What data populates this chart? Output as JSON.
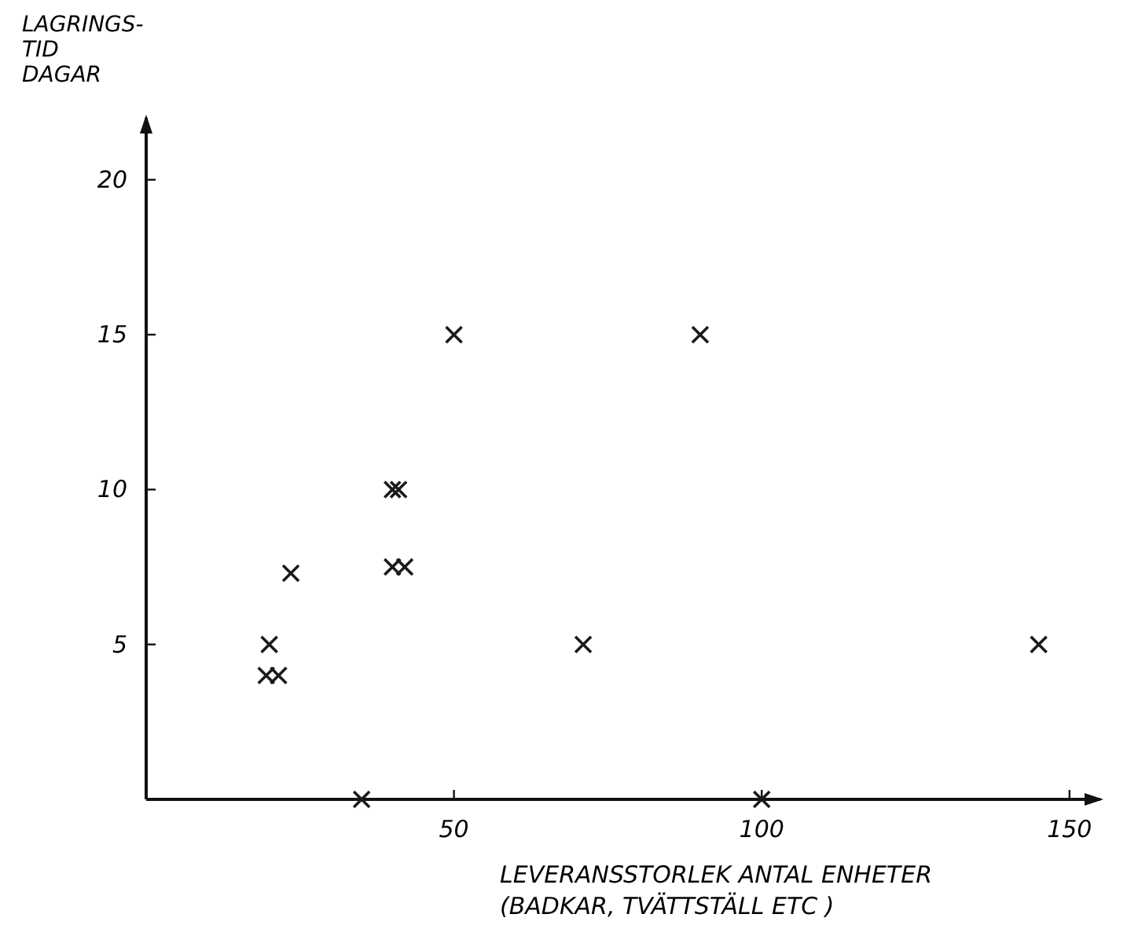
{
  "chart_data": {
    "type": "scatter",
    "xlabel": "LEVERANSSTORLEK ANTAL ENHETER\n(BADKAR, TVÄTTSTÄLL ETC )",
    "ylabel": "LAGRINGS-\nTID\nDAGAR",
    "marker": "cross",
    "grid": false,
    "series": [
      {
        "color": "#1a1a1a",
        "x": [
          20,
          19.5,
          21.5,
          23.5,
          40,
          41,
          40,
          42,
          50,
          35,
          71,
          90,
          100,
          145
        ],
        "values": [
          5,
          4,
          4,
          7.3,
          10,
          10,
          7.5,
          7.5,
          15,
          0,
          5,
          15,
          0,
          5
        ]
      }
    ],
    "xlim": [
      0,
      155
    ],
    "ylim": [
      0,
      22
    ],
    "xticks": [
      50,
      100,
      150
    ],
    "yticks": [
      5,
      10,
      15,
      20
    ]
  }
}
